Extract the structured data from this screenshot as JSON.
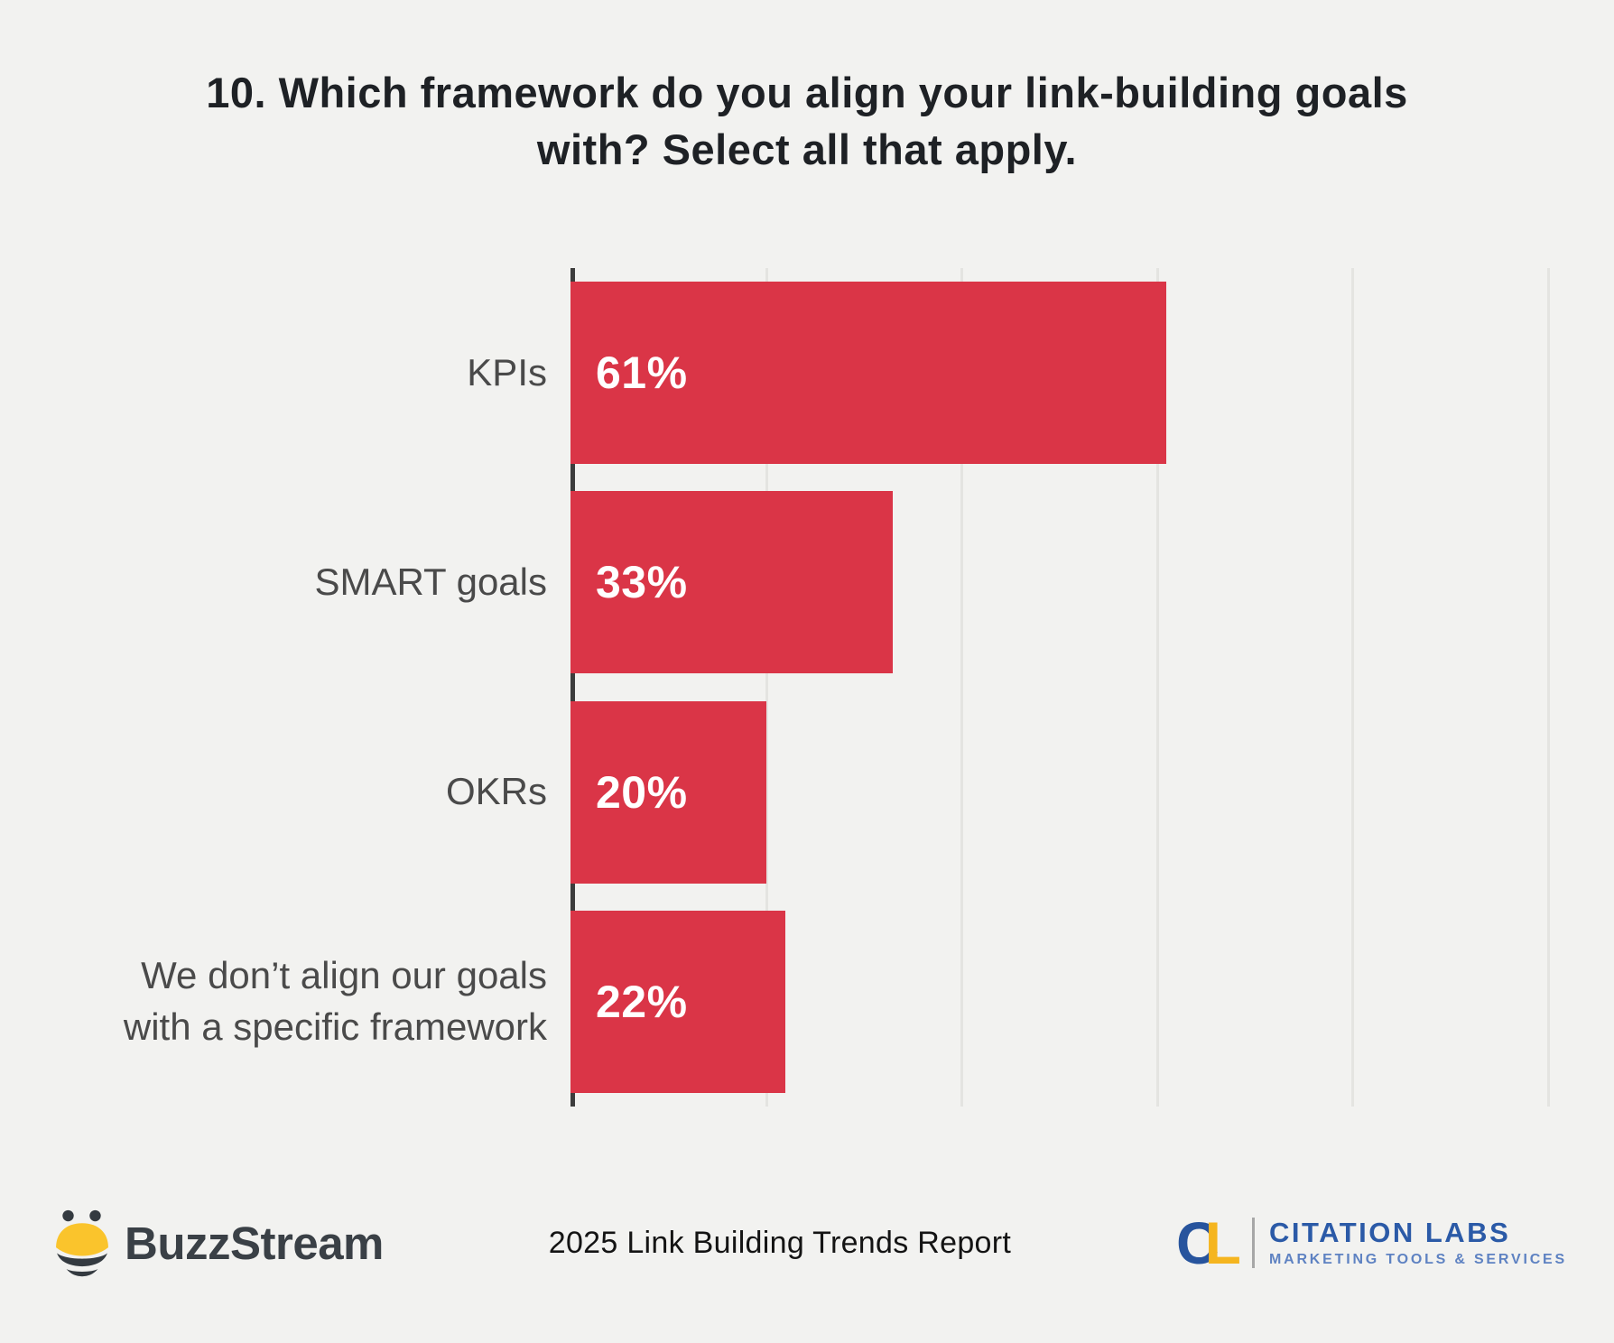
{
  "title": "10. Which framework do you align your link-building goals with? Select all that apply.",
  "chart_data": {
    "type": "bar",
    "orientation": "horizontal",
    "title": "10. Which framework do you align your link-building goals with? Select all that apply.",
    "categories": [
      "KPIs",
      "SMART goals",
      "OKRs",
      "We don’t align our goals with a specific framework"
    ],
    "values": [
      61,
      33,
      20,
      22
    ],
    "value_labels": [
      "61%",
      "33%",
      "20%",
      "22%"
    ],
    "xlim": [
      0,
      100
    ],
    "gridlines_percent": [
      20,
      40,
      60,
      80,
      100
    ],
    "grid": "vertical-lines",
    "legend": "none",
    "bar_color": "#DA3547"
  },
  "footer": {
    "buzzstream": {
      "label": "BuzzStream"
    },
    "report_title": "2025 Link Building Trends Report",
    "citation_labs": {
      "mark_c": "C",
      "mark_l": "L",
      "name": "CITATION LABS",
      "tagline": "MARKETING TOOLS & SERVICES"
    }
  },
  "colors": {
    "background": "#F2F2F0",
    "bar": "#DA3547",
    "axis_line": "#3C3C3C",
    "gridline": "#E4E4E1",
    "title_text": "#1E2125",
    "category_text": "#4A4A4A",
    "value_text": "#FFFFFF",
    "buzzstream_dark": "#3A4046",
    "bee_yellow": "#FAC42C",
    "citation_blue": "#2B5AA7",
    "citation_gold": "#F5B51F",
    "citation_light_blue": "#5E82C2"
  }
}
